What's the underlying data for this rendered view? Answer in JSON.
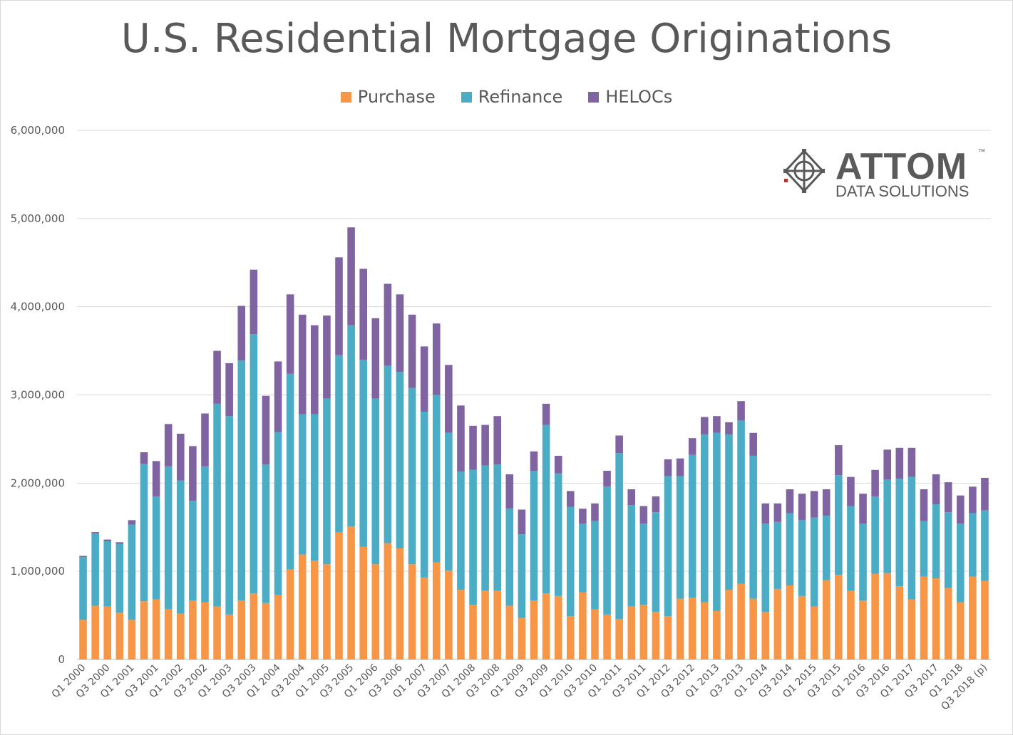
{
  "chart_data": {
    "type": "bar",
    "stacked": true,
    "title": "U.S. Residential Mortgage Originations",
    "xlabel": "",
    "ylabel": "",
    "ylim": [
      0,
      6000000
    ],
    "yticks": [
      "0",
      "1,000,000",
      "2,000,000",
      "3,000,000",
      "4,000,000",
      "5,000,000",
      "6,000,000"
    ],
    "grid": true,
    "legend_position": "top",
    "categories": [
      "Q1 2000",
      "Q2 2000",
      "Q3 2000",
      "Q4 2000",
      "Q1 2001",
      "Q2 2001",
      "Q3 2001",
      "Q4 2001",
      "Q1 2002",
      "Q2 2002",
      "Q3 2002",
      "Q4 2002",
      "Q1 2003",
      "Q2 2003",
      "Q3 2003",
      "Q4 2003",
      "Q1 2004",
      "Q2 2004",
      "Q3 2004",
      "Q4 2004",
      "Q1 2005",
      "Q2 2005",
      "Q3 2005",
      "Q4 2005",
      "Q1 2006",
      "Q2 2006",
      "Q3 2006",
      "Q4 2006",
      "Q1 2007",
      "Q2 2007",
      "Q3 2007",
      "Q4 2007",
      "Q1 2008",
      "Q2 2008",
      "Q3 2008",
      "Q4 2008",
      "Q1 2009",
      "Q2 2009",
      "Q3 2009",
      "Q4 2009",
      "Q1 2010",
      "Q2 2010",
      "Q3 2010",
      "Q4 2010",
      "Q1 2011",
      "Q2 2011",
      "Q3 2011",
      "Q4 2011",
      "Q1 2012",
      "Q2 2012",
      "Q3 2012",
      "Q4 2012",
      "Q1 2013",
      "Q2 2013",
      "Q3 2013",
      "Q4 2013",
      "Q1 2014",
      "Q2 2014",
      "Q3 2014",
      "Q4 2014",
      "Q1 2015",
      "Q2 2015",
      "Q3 2015",
      "Q4 2015",
      "Q1 2016",
      "Q2 2016",
      "Q3 2016",
      "Q4 2016",
      "Q1 2017",
      "Q2 2017",
      "Q3 2017",
      "Q4 2017",
      "Q1 2018",
      "Q2 2018",
      "Q3 2018 (p)"
    ],
    "tick_labels_shown": [
      "Q1 2000",
      "Q3 2000",
      "Q1 2001",
      "Q3 2001",
      "Q1 2002",
      "Q3 2002",
      "Q1 2003",
      "Q3 2003",
      "Q1 2004",
      "Q3 2004",
      "Q1 2005",
      "Q3 2005",
      "Q1 2006",
      "Q3 2006",
      "Q1 2007",
      "Q3 2007",
      "Q1 2008",
      "Q3 2008",
      "Q1 2009",
      "Q3 2009",
      "Q1 2010",
      "Q3 2010",
      "Q1 2011",
      "Q3 2011",
      "Q1 2012",
      "Q3 2012",
      "Q1 2013",
      "Q3 2013",
      "Q1 2014",
      "Q3 2014",
      "Q1 2015",
      "Q3 2015",
      "Q1 2016",
      "Q3 2016",
      "Q1 2017",
      "Q3 2017",
      "Q1 2018",
      "Q3 2018 (p)"
    ],
    "series": [
      {
        "name": "Purchase",
        "color": "#f79646",
        "values": [
          450000,
          610000,
          600000,
          530000,
          450000,
          660000,
          680000,
          570000,
          520000,
          670000,
          650000,
          600000,
          510000,
          670000,
          750000,
          640000,
          730000,
          1020000,
          1190000,
          1120000,
          1080000,
          1440000,
          1510000,
          1280000,
          1080000,
          1320000,
          1260000,
          1080000,
          930000,
          1100000,
          1010000,
          790000,
          620000,
          780000,
          780000,
          610000,
          470000,
          670000,
          750000,
          720000,
          490000,
          760000,
          570000,
          510000,
          460000,
          600000,
          620000,
          540000,
          490000,
          690000,
          700000,
          650000,
          550000,
          790000,
          860000,
          690000,
          540000,
          800000,
          840000,
          720000,
          600000,
          900000,
          960000,
          780000,
          670000,
          970000,
          980000,
          830000,
          680000,
          940000,
          920000,
          810000,
          650000,
          940000,
          890000
        ]
      },
      {
        "name": "Refinance",
        "color": "#4bacc6",
        "values": [
          710000,
          820000,
          740000,
          780000,
          1080000,
          1560000,
          1170000,
          1620000,
          1510000,
          1130000,
          1540000,
          2300000,
          2250000,
          2720000,
          2940000,
          1570000,
          1850000,
          2220000,
          1590000,
          1660000,
          1880000,
          2010000,
          2280000,
          2120000,
          1880000,
          2010000,
          2000000,
          2000000,
          1880000,
          1900000,
          1560000,
          1340000,
          1530000,
          1420000,
          1430000,
          1100000,
          950000,
          1470000,
          1910000,
          1390000,
          1240000,
          780000,
          1000000,
          1450000,
          1880000,
          1150000,
          920000,
          1130000,
          1590000,
          1390000,
          1620000,
          1900000,
          2020000,
          1760000,
          1850000,
          1620000,
          1000000,
          760000,
          820000,
          860000,
          1010000,
          730000,
          1130000,
          960000,
          870000,
          880000,
          1060000,
          1220000,
          1390000,
          630000,
          840000,
          860000,
          890000,
          720000,
          800000
        ]
      },
      {
        "name": "HELOCs",
        "color": "#8064a2",
        "values": [
          15000,
          15000,
          20000,
          20000,
          50000,
          130000,
          400000,
          480000,
          530000,
          620000,
          600000,
          600000,
          600000,
          620000,
          730000,
          780000,
          800000,
          900000,
          1130000,
          1010000,
          940000,
          1110000,
          1110000,
          1030000,
          910000,
          930000,
          880000,
          830000,
          740000,
          810000,
          770000,
          750000,
          500000,
          460000,
          550000,
          390000,
          280000,
          220000,
          240000,
          200000,
          180000,
          170000,
          200000,
          180000,
          200000,
          180000,
          200000,
          180000,
          190000,
          200000,
          190000,
          200000,
          190000,
          140000,
          220000,
          260000,
          230000,
          210000,
          270000,
          300000,
          300000,
          300000,
          340000,
          330000,
          340000,
          300000,
          340000,
          350000,
          330000,
          360000,
          340000,
          340000,
          320000,
          300000,
          370000
        ]
      }
    ]
  },
  "brand": {
    "name": "ATTOM",
    "tm": "™",
    "sub": "DATA SOLUTIONS"
  }
}
